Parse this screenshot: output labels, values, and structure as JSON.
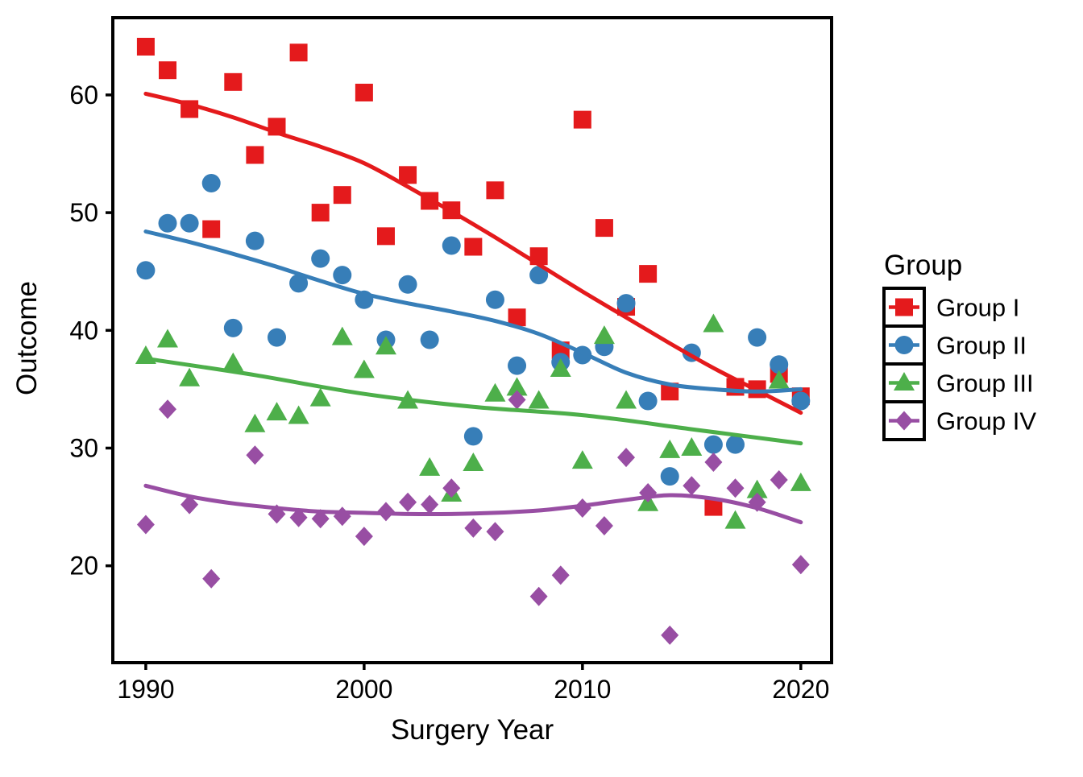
{
  "chart_data": {
    "type": "scatter",
    "title": "",
    "xlabel": "Surgery Year",
    "ylabel": "Outcome",
    "x_ticks": [
      1990,
      2000,
      2010,
      2020
    ],
    "y_ticks": [
      20,
      30,
      40,
      50,
      60
    ],
    "xlim": [
      1988.49,
      2021.41
    ],
    "ylim": [
      11.77,
      66.56
    ],
    "grid": false,
    "background": "#ffffff",
    "axis_color": "#000000",
    "legend": {
      "title": "Group",
      "position": "right"
    },
    "series": [
      {
        "name": "Group I",
        "marker": "square",
        "color": "#E41A1C",
        "points": [
          [
            1990,
            64.1
          ],
          [
            1991,
            62.1
          ],
          [
            1992,
            58.8
          ],
          [
            1993,
            48.6
          ],
          [
            1994,
            61.1
          ],
          [
            1995,
            54.9
          ],
          [
            1996,
            57.3
          ],
          [
            1997,
            63.6
          ],
          [
            1998,
            50.0
          ],
          [
            1999,
            51.5
          ],
          [
            2000,
            60.2
          ],
          [
            2001,
            48.0
          ],
          [
            2002,
            53.2
          ],
          [
            2003,
            51.0
          ],
          [
            2004,
            50.2
          ],
          [
            2005,
            47.1
          ],
          [
            2006,
            51.9
          ],
          [
            2007,
            41.1
          ],
          [
            2008,
            46.3
          ],
          [
            2009,
            38.3
          ],
          [
            2010,
            57.9
          ],
          [
            2011,
            48.7
          ],
          [
            2012,
            42.0
          ],
          [
            2013,
            44.8
          ],
          [
            2014,
            34.8
          ],
          [
            2016,
            25.0
          ],
          [
            2017,
            35.2
          ],
          [
            2018,
            35.0
          ],
          [
            2019,
            36.3
          ],
          [
            2020,
            34.4
          ]
        ],
        "smooth_line": [
          [
            1990,
            60.1
          ],
          [
            1992,
            59.2
          ],
          [
            1994,
            58.1
          ],
          [
            1996,
            56.8
          ],
          [
            1998,
            55.6
          ],
          [
            2000,
            54.2
          ],
          [
            2002,
            52.2
          ],
          [
            2004,
            50.1
          ],
          [
            2006,
            47.9
          ],
          [
            2008,
            45.6
          ],
          [
            2010,
            43.3
          ],
          [
            2012,
            41.1
          ],
          [
            2014,
            38.9
          ],
          [
            2016,
            36.8
          ],
          [
            2018,
            34.9
          ],
          [
            2020,
            33.0
          ]
        ]
      },
      {
        "name": "Group II",
        "marker": "circle",
        "color": "#377EB8",
        "points": [
          [
            1990,
            45.1
          ],
          [
            1991,
            49.1
          ],
          [
            1992,
            49.1
          ],
          [
            1993,
            52.5
          ],
          [
            1994,
            40.2
          ],
          [
            1995,
            47.6
          ],
          [
            1996,
            39.4
          ],
          [
            1997,
            44.0
          ],
          [
            1998,
            46.1
          ],
          [
            1999,
            44.7
          ],
          [
            2000,
            42.6
          ],
          [
            2001,
            39.2
          ],
          [
            2002,
            43.9
          ],
          [
            2003,
            39.2
          ],
          [
            2004,
            47.2
          ],
          [
            2005,
            31.0
          ],
          [
            2006,
            42.6
          ],
          [
            2007,
            37.0
          ],
          [
            2008,
            44.7
          ],
          [
            2009,
            37.3
          ],
          [
            2010,
            37.9
          ],
          [
            2011,
            38.6
          ],
          [
            2012,
            42.3
          ],
          [
            2013,
            34.0
          ],
          [
            2014,
            27.6
          ],
          [
            2015,
            38.1
          ],
          [
            2016,
            30.3
          ],
          [
            2017,
            30.3
          ],
          [
            2018,
            39.4
          ],
          [
            2019,
            37.1
          ],
          [
            2020,
            34.0
          ]
        ],
        "smooth_line": [
          [
            1990,
            48.4
          ],
          [
            1992,
            47.5
          ],
          [
            1994,
            46.5
          ],
          [
            1996,
            45.4
          ],
          [
            1998,
            44.2
          ],
          [
            2000,
            43.1
          ],
          [
            2002,
            42.3
          ],
          [
            2004,
            41.6
          ],
          [
            2006,
            40.8
          ],
          [
            2008,
            39.7
          ],
          [
            2010,
            38.1
          ],
          [
            2012,
            36.4
          ],
          [
            2014,
            35.4
          ],
          [
            2016,
            35.0
          ],
          [
            2018,
            34.8
          ],
          [
            2020,
            35.0
          ]
        ]
      },
      {
        "name": "Group III",
        "marker": "triangle",
        "color": "#4DAF4A",
        "points": [
          [
            1990,
            37.8
          ],
          [
            1991,
            39.2
          ],
          [
            1992,
            35.9
          ],
          [
            1994,
            37.2
          ],
          [
            1995,
            32.0
          ],
          [
            1996,
            33.0
          ],
          [
            1997,
            32.7
          ],
          [
            1998,
            34.2
          ],
          [
            1999,
            39.4
          ],
          [
            2000,
            36.6
          ],
          [
            2001,
            38.6
          ],
          [
            2002,
            34.0
          ],
          [
            2003,
            28.3
          ],
          [
            2004,
            26.1
          ],
          [
            2005,
            28.7
          ],
          [
            2006,
            34.6
          ],
          [
            2007,
            35.1
          ],
          [
            2008,
            34.0
          ],
          [
            2009,
            36.7
          ],
          [
            2010,
            28.9
          ],
          [
            2011,
            39.5
          ],
          [
            2012,
            34.0
          ],
          [
            2013,
            25.3
          ],
          [
            2014,
            29.8
          ],
          [
            2015,
            30.0
          ],
          [
            2016,
            40.5
          ],
          [
            2017,
            23.8
          ],
          [
            2018,
            26.4
          ],
          [
            2019,
            35.7
          ],
          [
            2020,
            27.0
          ]
        ],
        "smooth_line": [
          [
            1990,
            37.6
          ],
          [
            1995,
            36.2
          ],
          [
            2000,
            34.6
          ],
          [
            2005,
            33.5
          ],
          [
            2010,
            32.8
          ],
          [
            2015,
            31.6
          ],
          [
            2020,
            30.4
          ]
        ]
      },
      {
        "name": "Group IV",
        "marker": "diamond",
        "color": "#984EA3",
        "points": [
          [
            1990,
            23.5
          ],
          [
            1991,
            33.3
          ],
          [
            1992,
            25.2
          ],
          [
            1993,
            18.9
          ],
          [
            1995,
            29.4
          ],
          [
            1996,
            24.4
          ],
          [
            1997,
            24.1
          ],
          [
            1998,
            24.0
          ],
          [
            1999,
            24.2
          ],
          [
            2000,
            22.5
          ],
          [
            2001,
            24.6
          ],
          [
            2002,
            25.4
          ],
          [
            2003,
            25.2
          ],
          [
            2004,
            26.6
          ],
          [
            2005,
            23.2
          ],
          [
            2006,
            22.9
          ],
          [
            2007,
            34.1
          ],
          [
            2008,
            17.4
          ],
          [
            2009,
            19.2
          ],
          [
            2010,
            24.9
          ],
          [
            2011,
            23.4
          ],
          [
            2012,
            29.2
          ],
          [
            2013,
            26.2
          ],
          [
            2014,
            14.1
          ],
          [
            2015,
            26.8
          ],
          [
            2016,
            28.8
          ],
          [
            2017,
            26.6
          ],
          [
            2018,
            25.4
          ],
          [
            2019,
            27.3
          ],
          [
            2020,
            20.1
          ]
        ],
        "smooth_line": [
          [
            1990,
            26.8
          ],
          [
            1992,
            25.9
          ],
          [
            1994,
            25.3
          ],
          [
            1996,
            24.9
          ],
          [
            1998,
            24.6
          ],
          [
            2000,
            24.5
          ],
          [
            2002,
            24.4
          ],
          [
            2004,
            24.4
          ],
          [
            2006,
            24.5
          ],
          [
            2008,
            24.7
          ],
          [
            2010,
            25.1
          ],
          [
            2012,
            25.6
          ],
          [
            2014,
            26.0
          ],
          [
            2016,
            25.7
          ],
          [
            2018,
            24.9
          ],
          [
            2020,
            23.7
          ]
        ]
      }
    ]
  }
}
